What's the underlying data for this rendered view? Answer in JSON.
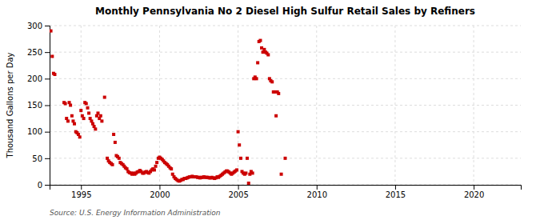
{
  "chart_data": {
    "type": "scatter",
    "title": "Monthly Pennsylvania No 2 Diesel High Sulfur Retail Sales by Refiners",
    "ylabel": "Thousand Gallons per Day",
    "source": "Source: U.S. Energy Information Administration",
    "color": "#cc0000",
    "marker": "square",
    "grid": true,
    "xlim": [
      1993.0,
      2023.0
    ],
    "ylim": [
      0,
      300
    ],
    "xticks": [
      1995,
      2000,
      2005,
      2010,
      2015,
      2020
    ],
    "yticks": [
      0,
      50,
      100,
      150,
      200,
      250,
      300
    ],
    "x": [
      1993.08,
      1993.17,
      1993.25,
      1993.33,
      1993.92,
      1994.0,
      1994.08,
      1994.17,
      1994.25,
      1994.33,
      1994.42,
      1994.5,
      1994.58,
      1994.67,
      1994.75,
      1994.83,
      1994.92,
      1995.0,
      1995.08,
      1995.17,
      1995.25,
      1995.33,
      1995.42,
      1995.5,
      1995.58,
      1995.67,
      1995.75,
      1995.83,
      1995.92,
      1996.0,
      1996.08,
      1996.17,
      1996.25,
      1996.33,
      1996.5,
      1996.67,
      1996.75,
      1996.83,
      1996.92,
      1997.0,
      1997.08,
      1997.17,
      1997.25,
      1997.33,
      1997.42,
      1997.5,
      1997.58,
      1997.67,
      1997.75,
      1997.83,
      1997.92,
      1998.0,
      1998.08,
      1998.17,
      1998.25,
      1998.33,
      1998.42,
      1998.5,
      1998.58,
      1998.67,
      1998.75,
      1998.83,
      1998.92,
      1999.0,
      1999.08,
      1999.17,
      1999.25,
      1999.33,
      1999.42,
      1999.5,
      1999.58,
      1999.67,
      1999.75,
      1999.83,
      1999.92,
      2000.0,
      2000.08,
      2000.17,
      2000.25,
      2000.33,
      2000.42,
      2000.5,
      2000.58,
      2000.67,
      2000.75,
      2000.83,
      2000.92,
      2001.0,
      2001.08,
      2001.17,
      2001.25,
      2001.33,
      2001.42,
      2001.5,
      2001.58,
      2001.67,
      2001.75,
      2001.83,
      2001.92,
      2002.0,
      2002.08,
      2002.17,
      2002.25,
      2002.33,
      2002.42,
      2002.5,
      2002.58,
      2002.67,
      2002.75,
      2002.83,
      2002.92,
      2003.0,
      2003.08,
      2003.17,
      2003.25,
      2003.33,
      2003.42,
      2003.5,
      2003.58,
      2003.67,
      2003.75,
      2003.83,
      2003.92,
      2004.0,
      2004.08,
      2004.17,
      2004.25,
      2004.33,
      2004.42,
      2004.5,
      2004.58,
      2004.67,
      2004.75,
      2004.83,
      2004.92,
      2005.0,
      2005.08,
      2005.17,
      2005.25,
      2005.33,
      2005.42,
      2005.5,
      2005.58,
      2005.67,
      2005.75,
      2005.83,
      2005.92,
      2006.0,
      2006.08,
      2006.17,
      2006.25,
      2006.33,
      2006.42,
      2006.5,
      2006.58,
      2006.67,
      2006.75,
      2006.83,
      2006.92,
      2007.0,
      2007.08,
      2007.17,
      2007.25,
      2007.33,
      2007.42,
      2007.5,
      2007.58,
      2007.75,
      2008.0
    ],
    "values": [
      290,
      242,
      210,
      208,
      155,
      153,
      125,
      120,
      155,
      150,
      130,
      120,
      115,
      100,
      98,
      95,
      90,
      140,
      130,
      125,
      155,
      153,
      145,
      135,
      125,
      120,
      115,
      110,
      105,
      130,
      135,
      125,
      130,
      120,
      165,
      50,
      45,
      42,
      40,
      38,
      95,
      80,
      55,
      53,
      50,
      42,
      40,
      38,
      35,
      32,
      30,
      25,
      23,
      22,
      20,
      22,
      20,
      22,
      24,
      25,
      27,
      25,
      22,
      22,
      24,
      25,
      23,
      22,
      25,
      28,
      30,
      28,
      35,
      42,
      50,
      52,
      50,
      48,
      45,
      42,
      40,
      38,
      35,
      32,
      30,
      20,
      15,
      12,
      10,
      8,
      7,
      8,
      10,
      10,
      12,
      12,
      13,
      14,
      15,
      15,
      16,
      15,
      15,
      15,
      14,
      14,
      13,
      14,
      14,
      15,
      14,
      14,
      14,
      13,
      13,
      14,
      13,
      12,
      13,
      15,
      14,
      16,
      18,
      20,
      22,
      24,
      26,
      26,
      24,
      22,
      20,
      22,
      24,
      26,
      28,
      100,
      75,
      50,
      25,
      22,
      20,
      22,
      50,
      3,
      20,
      25,
      22,
      200,
      203,
      200,
      230,
      270,
      272,
      258,
      250,
      255,
      250,
      248,
      245,
      200,
      196,
      194,
      175,
      175,
      130,
      175,
      172,
      20,
      50
    ]
  }
}
